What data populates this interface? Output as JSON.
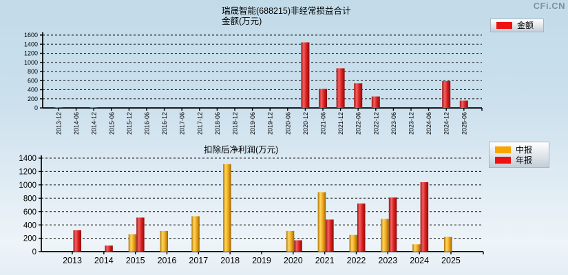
{
  "watermark": "CFi.CN",
  "chart_data": [
    {
      "type": "bar",
      "title": "瑞晟智能(688215)非经常损益合计",
      "subtitle": "金额(万元)",
      "unit": "万元",
      "ylim": [
        0,
        1600
      ],
      "ytick_step": 200,
      "grid": "dashed-horizontal",
      "legend_position": "top-right",
      "categories": [
        "2013-12",
        "2014-06",
        "2014-12",
        "2015-06",
        "2015-12",
        "2016-06",
        "2016-12",
        "2017-06",
        "2017-12",
        "2018-06",
        "2018-12",
        "2019-06",
        "2019-12",
        "2020-06",
        "2020-12",
        "2021-06",
        "2021-12",
        "2022-06",
        "2022-12",
        "2023-06",
        "2023-12",
        "2024-06",
        "2024-12",
        "2025-06"
      ],
      "series": [
        {
          "name": "金额",
          "color": "#e02222",
          "values": [
            15,
            0,
            15,
            0,
            0,
            0,
            0,
            0,
            0,
            0,
            0,
            0,
            0,
            0,
            1440,
            420,
            870,
            540,
            250,
            0,
            0,
            0,
            590,
            160
          ]
        }
      ]
    },
    {
      "type": "bar",
      "title": "扣除后净利润(万元)",
      "unit": "万元",
      "ylim": [
        0,
        1400
      ],
      "ytick_step": 200,
      "grid": "dashed-horizontal",
      "legend_position": "top-right",
      "categories": [
        "2013",
        "2014",
        "2015",
        "2016",
        "2017",
        "2018",
        "2019",
        "2020",
        "2021",
        "2022",
        "2023",
        "2024",
        "2025"
      ],
      "series": [
        {
          "name": "中报",
          "color": "#f7a600",
          "values": [
            null,
            null,
            260,
            310,
            530,
            1310,
            null,
            310,
            890,
            250,
            490,
            110,
            220
          ]
        },
        {
          "name": "年报",
          "color": "#ee1111",
          "values": [
            320,
            90,
            510,
            null,
            null,
            null,
            null,
            170,
            480,
            720,
            810,
            1040,
            null
          ]
        }
      ]
    }
  ]
}
